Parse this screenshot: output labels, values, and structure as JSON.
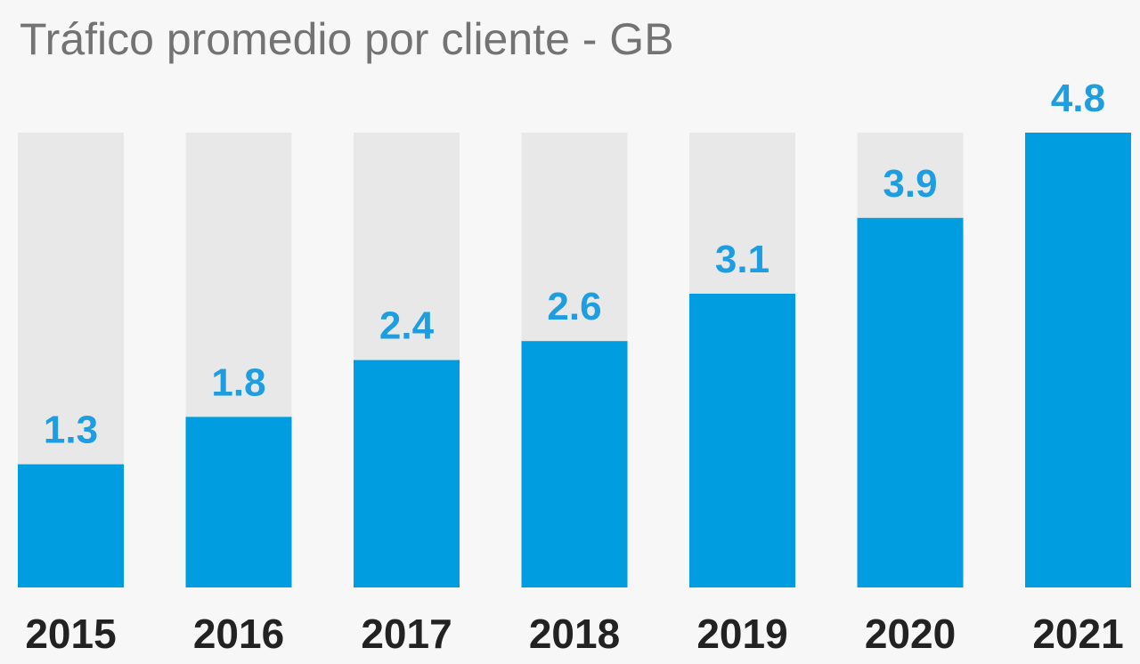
{
  "chart_data": {
    "type": "bar",
    "title": "Tráfico promedio por cliente - GB",
    "categories": [
      "2015",
      "2016",
      "2017",
      "2018",
      "2019",
      "2020",
      "2021"
    ],
    "values": [
      1.3,
      1.8,
      2.4,
      2.6,
      3.1,
      3.9,
      4.8
    ],
    "value_labels": [
      "1.3",
      "1.8",
      "2.4",
      "2.6",
      "3.1",
      "3.9",
      "4.8"
    ],
    "ylim": [
      0,
      4.8
    ],
    "grid": false,
    "legend": "none",
    "colors": {
      "bar": "#009de0",
      "track": "#e8e8e8",
      "value_label": "#1e9ee0",
      "category_label": "#222222",
      "title": "#737373",
      "background": "#f7f7f7"
    }
  }
}
